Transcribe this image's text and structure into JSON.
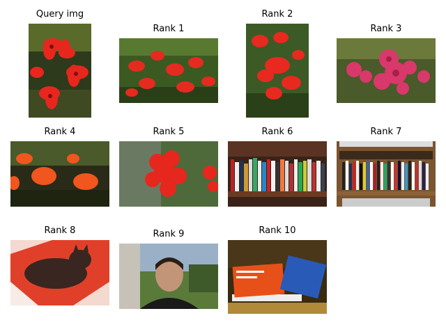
{
  "figure": {
    "titles": {
      "query": "Query img",
      "rank1": "Rank 1",
      "rank2": "Rank 2",
      "rank3": "Rank 3",
      "rank4": "Rank 4",
      "rank5": "Rank 5",
      "rank6": "Rank 6",
      "rank7": "Rank 7",
      "rank8": "Rank 8",
      "rank9": "Rank 9",
      "rank10": "Rank 10"
    },
    "images": {
      "query": "red-flowers-photo",
      "rank1": "red-flowers-photo",
      "rank2": "red-flowers-photo",
      "rank3": "pink-roses-photo",
      "rank4": "orange-impatiens-photo",
      "rank5": "red-geranium-photo",
      "rank6": "bookshelf-photo",
      "rank7": "bookshelf-photo",
      "rank8": "cat-photo",
      "rank9": "man-portrait-photo",
      "rank10": "books-on-shelf-photo"
    }
  }
}
